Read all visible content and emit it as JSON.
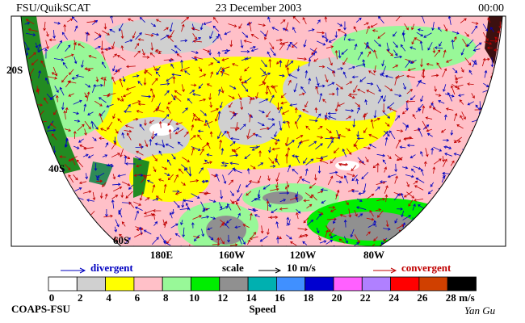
{
  "header": {
    "left": "FSU/QuikSCAT",
    "center": "23 December 2003",
    "right": "00:00"
  },
  "map": {
    "lat_labels": [
      "20S",
      "40S",
      "60S"
    ],
    "lon_labels": [
      "180E",
      "160W",
      "120W",
      "80W"
    ]
  },
  "legend": {
    "divergent": "divergent",
    "scale": "scale",
    "scale_value": "10 m/s",
    "convergent": "convergent"
  },
  "colorbar": {
    "ticks": [
      0,
      2,
      4,
      6,
      8,
      10,
      12,
      14,
      16,
      18,
      20,
      22,
      24,
      26,
      28
    ],
    "unit": "m/s",
    "title": "Speed",
    "colors": [
      "#ffffff",
      "#d0d0d0",
      "#ffff00",
      "#ffc0c8",
      "#98f898",
      "#00ee00",
      "#909090",
      "#00b0b0",
      "#4090ff",
      "#0000d0",
      "#ff60ff",
      "#b080ff",
      "#ff0000",
      "#d04000",
      "#000000"
    ]
  },
  "footer": {
    "credit": "COAPS-FSU",
    "signature": "Yan Gu"
  }
}
